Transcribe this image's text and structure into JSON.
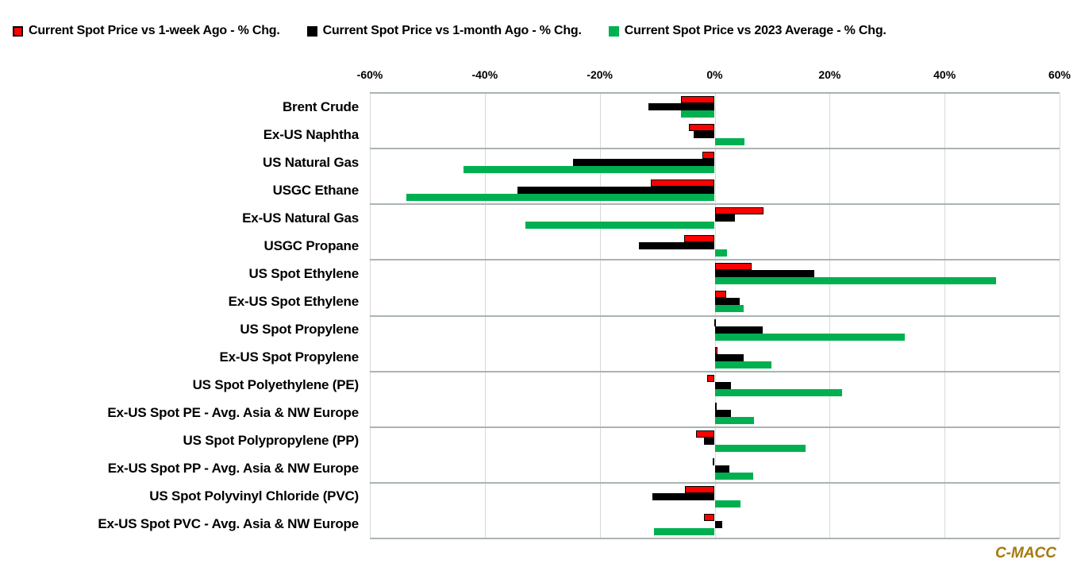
{
  "legend": [
    {
      "label": "Current Spot Price vs 1-week Ago - % Chg.",
      "color": "#ff0000",
      "border": true
    },
    {
      "label": "Current Spot Price vs 1-month Ago - % Chg.",
      "color": "#000000",
      "border": true
    },
    {
      "label": "Current Spot Price vs 2023 Average - % Chg.",
      "color": "#00b050",
      "border": false
    }
  ],
  "branding": {
    "watermark": "C-MACC",
    "color": "#a6790d"
  },
  "chart_data": {
    "type": "bar",
    "orientation": "horizontal",
    "title": "",
    "xlabel": "",
    "ylabel": "",
    "xlim": [
      -60,
      60
    ],
    "x_ticks": [
      "-60%",
      "-40%",
      "-20%",
      "0%",
      "20%",
      "40%",
      "60%"
    ],
    "grid": "vertical major gridlines; horizontal separator every 2 categories",
    "legend_position": "top",
    "categories": [
      "Brent Crude",
      "Ex-US Naphtha",
      "US Natural Gas",
      "USGC Ethane",
      "Ex-US Natural Gas",
      "USGC Propane",
      "US Spot Ethylene",
      "Ex-US Spot Ethylene",
      "US Spot Propylene",
      "Ex-US Spot Propylene",
      "US Spot Polyethylene (PE)",
      "Ex-US Spot PE - Avg. Asia & NW Europe",
      "US Spot Polypropylene (PP)",
      "Ex-US Spot PP - Avg. Asia & NW Europe",
      "US Spot Polyvinyl Chloride (PVC)",
      "Ex-US Spot PVC - Avg. Asia & NW Europe"
    ],
    "series": [
      {
        "name": "Current Spot Price vs 1-week Ago - % Chg.",
        "color": "#ff0000",
        "values": [
          -5.8,
          -4.5,
          -2.1,
          -11.1,
          8.5,
          -5.3,
          6.4,
          2.0,
          -0.1,
          0.5,
          -1.3,
          0.2,
          -3.3,
          -0.3,
          -5.2,
          -1.8
        ]
      },
      {
        "name": "Current Spot Price vs 1-month Ago - % Chg.",
        "color": "#000000",
        "values": [
          -11.5,
          -3.7,
          -24.6,
          -34.3,
          3.5,
          -13.2,
          17.3,
          4.4,
          8.4,
          5.0,
          2.8,
          2.8,
          -1.9,
          2.6,
          -10.8,
          1.3
        ]
      },
      {
        "name": "Current Spot Price vs 2023 Average - % Chg.",
        "color": "#00b050",
        "values": [
          -5.9,
          5.2,
          -43.7,
          -53.7,
          -33.0,
          2.1,
          48.9,
          5.1,
          33.1,
          9.9,
          22.2,
          6.9,
          15.8,
          6.7,
          4.5,
          -10.6
        ]
      }
    ]
  }
}
